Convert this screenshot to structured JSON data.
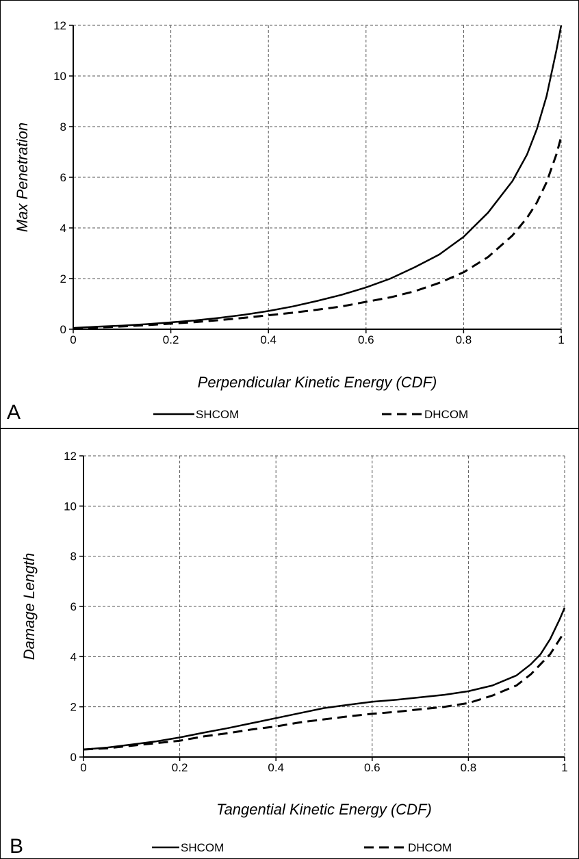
{
  "chart_data": [
    {
      "type": "line",
      "panel_label": "A",
      "xlabel": "Perpendicular Kinetic Energy (CDF)",
      "ylabel": "Max Penetration",
      "xlim": [
        0,
        1
      ],
      "ylim": [
        0,
        12
      ],
      "x_ticks": [
        "0",
        "0.2",
        "0.4",
        "0.6",
        "0.8",
        "1"
      ],
      "y_ticks": [
        "0",
        "2",
        "4",
        "6",
        "8",
        "10",
        "12"
      ],
      "grid": true,
      "legend_position": "bottom",
      "series": [
        {
          "name": "SHCOM",
          "style": "solid",
          "x": [
            0,
            0.05,
            0.1,
            0.15,
            0.2,
            0.25,
            0.3,
            0.35,
            0.4,
            0.45,
            0.5,
            0.55,
            0.6,
            0.65,
            0.7,
            0.75,
            0.8,
            0.85,
            0.9,
            0.93,
            0.95,
            0.97,
            0.99,
            1.0
          ],
          "y": [
            0.05,
            0.1,
            0.14,
            0.2,
            0.27,
            0.35,
            0.45,
            0.57,
            0.72,
            0.9,
            1.12,
            1.36,
            1.65,
            2.0,
            2.45,
            2.95,
            3.65,
            4.6,
            5.85,
            6.9,
            7.9,
            9.2,
            11.0,
            12.0
          ]
        },
        {
          "name": "DHCOM",
          "style": "dashed",
          "x": [
            0,
            0.05,
            0.1,
            0.15,
            0.2,
            0.25,
            0.3,
            0.35,
            0.4,
            0.45,
            0.5,
            0.55,
            0.6,
            0.65,
            0.7,
            0.75,
            0.8,
            0.85,
            0.9,
            0.93,
            0.95,
            0.97,
            0.99,
            1.0
          ],
          "y": [
            0.03,
            0.07,
            0.11,
            0.16,
            0.22,
            0.28,
            0.36,
            0.45,
            0.55,
            0.65,
            0.77,
            0.9,
            1.08,
            1.26,
            1.5,
            1.83,
            2.25,
            2.85,
            3.7,
            4.4,
            5.0,
            5.8,
            6.9,
            7.6
          ]
        }
      ]
    },
    {
      "type": "line",
      "panel_label": "B",
      "xlabel": "Tangential Kinetic Energy (CDF)",
      "ylabel": "Damage Length",
      "xlim": [
        0,
        1
      ],
      "ylim": [
        0,
        12
      ],
      "x_ticks": [
        "0",
        "0.2",
        "0.4",
        "0.6",
        "0.8",
        "1"
      ],
      "y_ticks": [
        "0",
        "2",
        "4",
        "6",
        "8",
        "10",
        "12"
      ],
      "grid": true,
      "legend_position": "bottom",
      "series": [
        {
          "name": "SHCOM",
          "style": "solid",
          "x": [
            0,
            0.05,
            0.1,
            0.15,
            0.2,
            0.25,
            0.3,
            0.35,
            0.4,
            0.45,
            0.5,
            0.55,
            0.6,
            0.65,
            0.7,
            0.75,
            0.8,
            0.85,
            0.9,
            0.93,
            0.95,
            0.97,
            0.99,
            1.0
          ],
          "y": [
            0.3,
            0.38,
            0.5,
            0.62,
            0.78,
            0.97,
            1.15,
            1.35,
            1.55,
            1.75,
            1.95,
            2.08,
            2.2,
            2.28,
            2.38,
            2.48,
            2.62,
            2.85,
            3.25,
            3.7,
            4.1,
            4.7,
            5.5,
            5.95
          ]
        },
        {
          "name": "DHCOM",
          "style": "dashed",
          "x": [
            0,
            0.05,
            0.1,
            0.15,
            0.2,
            0.25,
            0.3,
            0.35,
            0.4,
            0.45,
            0.5,
            0.55,
            0.6,
            0.65,
            0.7,
            0.75,
            0.8,
            0.85,
            0.9,
            0.93,
            0.95,
            0.97,
            0.99,
            1.0
          ],
          "y": [
            0.3,
            0.35,
            0.45,
            0.55,
            0.65,
            0.82,
            0.95,
            1.1,
            1.22,
            1.38,
            1.5,
            1.62,
            1.72,
            1.8,
            1.9,
            2.0,
            2.15,
            2.45,
            2.85,
            3.3,
            3.7,
            4.1,
            4.7,
            5.0
          ]
        }
      ]
    }
  ]
}
